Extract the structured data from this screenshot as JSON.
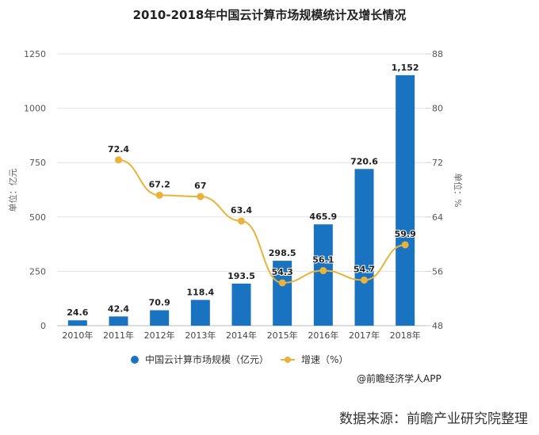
{
  "chart_data": {
    "type": "bar+line",
    "title": "2010-2018年中国云计算市场规模统计及增长情况",
    "categories": [
      "2010年",
      "2011年",
      "2012年",
      "2013年",
      "2014年",
      "2015年",
      "2016年",
      "2017年",
      "2018年"
    ],
    "series": [
      {
        "name": "中国云计算市场规模（亿元）",
        "type": "bar",
        "axis": "left",
        "color": "#1a73c1",
        "values": [
          24.6,
          42.4,
          70.9,
          118.4,
          193.5,
          298.5,
          465.9,
          720.6,
          1152
        ],
        "labels": [
          "24.6",
          "42.4",
          "70.9",
          "118.4",
          "193.5",
          "298.5",
          "465.9",
          "720.6",
          "1,152"
        ]
      },
      {
        "name": "增速（%）",
        "type": "line",
        "axis": "right",
        "color": "#e8b33a",
        "values": [
          null,
          72.4,
          67.2,
          67,
          63.4,
          54.3,
          56.1,
          54.7,
          59.9
        ],
        "labels": [
          "",
          "72.4",
          "67.2",
          "67",
          "63.4",
          "54.3",
          "56.1",
          "54.7",
          "59.9"
        ]
      }
    ],
    "yleft": {
      "label": "单位：亿元",
      "lim": [
        0,
        1250
      ],
      "ticks": [
        "0",
        "250",
        "500",
        "750",
        "1000",
        "1250"
      ]
    },
    "yright": {
      "label": "单位：%",
      "lim": [
        48,
        88
      ],
      "ticks": [
        "48",
        "56",
        "64",
        "72",
        "80",
        "88"
      ]
    },
    "grid": true,
    "legend": "bottom"
  },
  "credit": "@前瞻经济学人APP",
  "source": "数据来源：前瞻产业研究院整理"
}
